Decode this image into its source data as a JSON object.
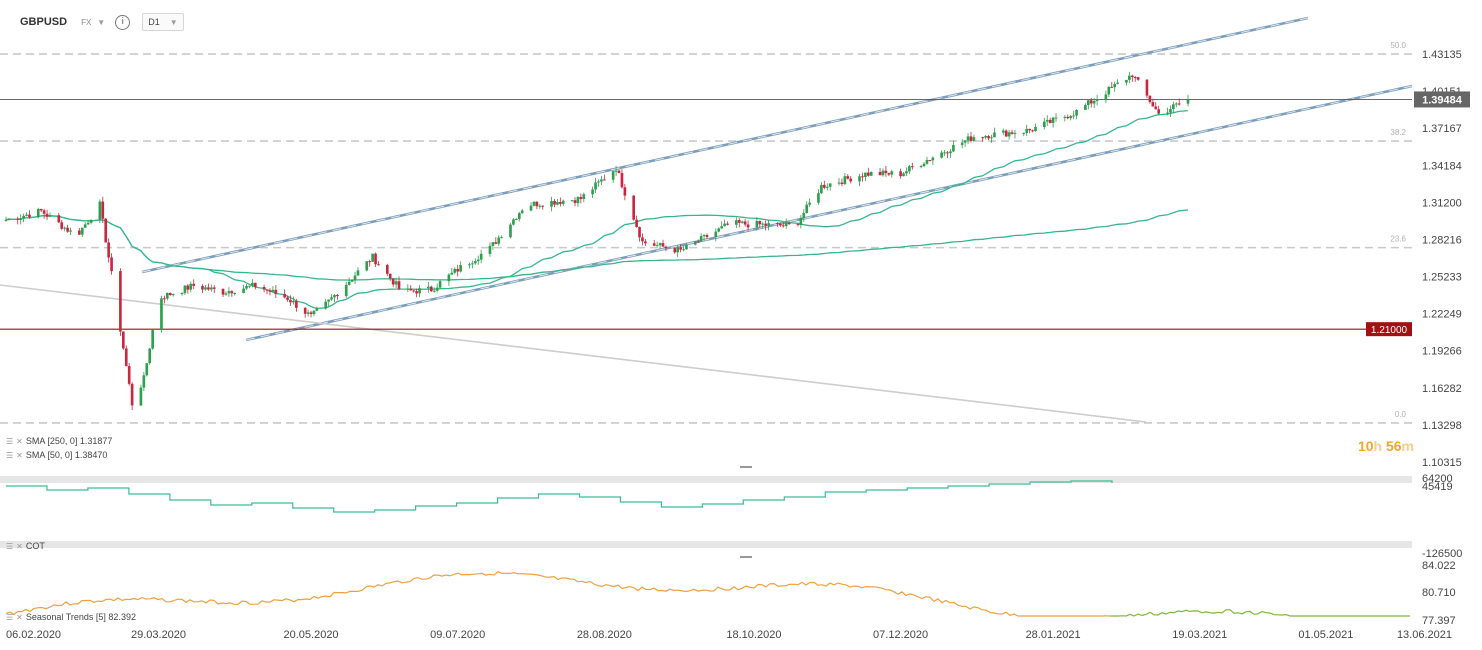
{
  "header": {
    "symbol": "GBPUSD",
    "market": "FX",
    "timeframe": "D1"
  },
  "icons": {
    "info": "info-icon",
    "dropdown": "chevron-down-icon",
    "indicator_menu": "menu-icon",
    "indicator_close": "close-icon"
  },
  "legend": {
    "sma250": "SMA [250, 0] 1.31877",
    "sma50": "SMA [50, 0] 1.38470",
    "cot": "COT",
    "seasonal": "Seasonal  Trends [5] 82.392"
  },
  "countdown": {
    "hours": "10",
    "h_unit": "h",
    "minutes": "56",
    "m_unit": "m"
  },
  "colors": {
    "bull": "#2e9e4f",
    "bear": "#c8283f",
    "sma": "#35b889",
    "channel": "#7d9dbb",
    "support": "#a30f13",
    "seasonal_past": "#f0a040",
    "seasonal_future": "#7cb83a",
    "cot": "#3bbf90",
    "price_tag": "#666666"
  },
  "chart_data": [
    {
      "type": "candlestick",
      "symbol": "GBPUSD",
      "x_tick_labels": [
        "06.02.2020",
        "29.03.2020",
        "20.05.2020",
        "09.07.2020",
        "28.08.2020",
        "18.10.2020",
        "07.12.2020",
        "28.01.2021",
        "19.03.2021",
        "01.05.2021",
        "13.06.2021"
      ],
      "y_tick_labels": [
        "1.43135",
        "1.40151",
        "1.37167",
        "1.34184",
        "1.31200",
        "1.28216",
        "1.25233",
        "1.22249",
        "1.19266",
        "1.16282",
        "1.13298",
        "1.10315"
      ],
      "ylim": [
        1.10315,
        1.44
      ],
      "price_path": [
        [
          "06.02.2020",
          1.298
        ],
        [
          "18.02.2020",
          1.305
        ],
        [
          "01.03.2020",
          1.285
        ],
        [
          "09.03.2020",
          1.31
        ],
        [
          "14.03.2020",
          1.24
        ],
        [
          "20.03.2020",
          1.15
        ],
        [
          "24.03.2020",
          1.17
        ],
        [
          "29.03.2020",
          1.235
        ],
        [
          "10.04.2020",
          1.245
        ],
        [
          "20.04.2020",
          1.24
        ],
        [
          "01.05.2020",
          1.245
        ],
        [
          "12.05.2020",
          1.235
        ],
        [
          "20.05.2020",
          1.22
        ],
        [
          "25.05.2020",
          1.23
        ],
        [
          "10.06.2020",
          1.268
        ],
        [
          "20.06.2020",
          1.24
        ],
        [
          "30.06.2020",
          1.242
        ],
        [
          "09.07.2020",
          1.258
        ],
        [
          "20.07.2020",
          1.275
        ],
        [
          "01.08.2020",
          1.31
        ],
        [
          "20.08.2020",
          1.315
        ],
        [
          "01.09.2020",
          1.34
        ],
        [
          "10.09.2020",
          1.28
        ],
        [
          "23.09.2020",
          1.273
        ],
        [
          "10.10.2020",
          1.295
        ],
        [
          "01.11.2020",
          1.293
        ],
        [
          "10.11.2020",
          1.325
        ],
        [
          "25.11.2020",
          1.335
        ],
        [
          "07.12.2020",
          1.335
        ],
        [
          "15.12.2020",
          1.345
        ],
        [
          "01.01.2021",
          1.365
        ],
        [
          "20.01.2021",
          1.37
        ],
        [
          "05.02.2021",
          1.385
        ],
        [
          "24.02.2021",
          1.415
        ],
        [
          "05.03.2021",
          1.383
        ],
        [
          "15.03.2021",
          1.3948
        ]
      ],
      "last_price": "1.39484",
      "level_label": "1.21000",
      "fib_levels": [
        {
          "label": "50.0",
          "price": 1.4313
        },
        {
          "label": "38.2",
          "price": 1.3613
        },
        {
          "label": "23.6",
          "price": 1.2756
        },
        {
          "label": "0.0",
          "price": 1.1346
        }
      ],
      "sma250_last": 1.31877,
      "sma50_last": 1.3847
    },
    {
      "type": "line",
      "name": "COT",
      "y_tick_labels": [
        "64200",
        "45419",
        "-126500"
      ]
    },
    {
      "type": "line",
      "name": "Seasonal  Trends [5]",
      "y_tick_labels": [
        "84.022",
        "80.710",
        "77.397"
      ]
    }
  ]
}
